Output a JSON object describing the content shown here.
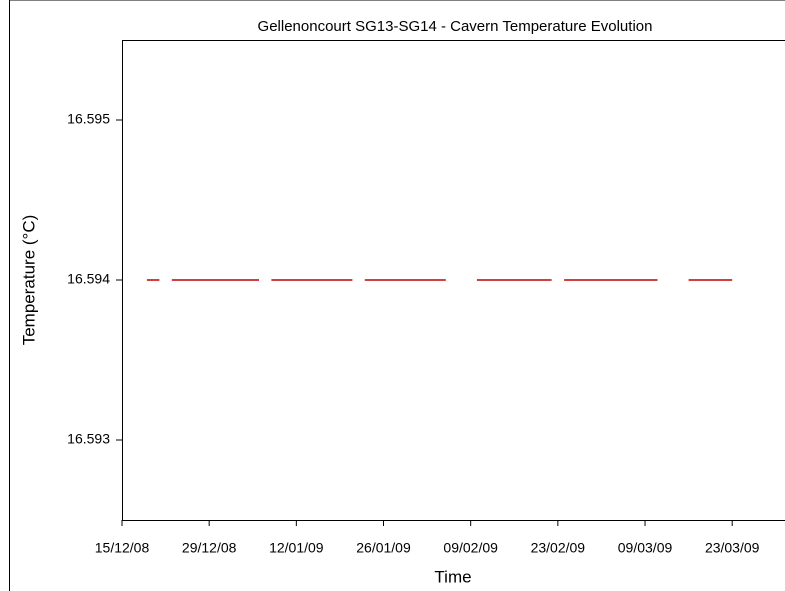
{
  "chart_data": {
    "type": "line",
    "title": "Gellenoncourt SG13-SG14 - Cavern Temperature Evolution",
    "x_label": "Time",
    "y_label": "Temperature (°C)",
    "x": [
      "2008-12-19",
      "2008-12-21",
      "2008-12-22",
      "2008-12-23",
      "2009-01-06",
      "2009-01-07",
      "2009-01-08",
      "2009-01-21",
      "2009-01-22",
      "2009-01-23",
      "2009-02-05",
      "2009-02-07",
      "2009-02-10",
      "2009-02-22",
      "2009-02-23",
      "2009-02-24",
      "2009-03-11",
      "2009-03-13",
      "2009-03-16",
      "2009-03-23"
    ],
    "series": [
      {
        "color": "#c00000",
        "values": [
          16.594,
          16.594,
          null,
          16.594,
          16.594,
          null,
          16.594,
          16.594,
          null,
          16.594,
          16.594,
          null,
          16.594,
          16.594,
          null,
          16.594,
          16.594,
          null,
          16.594,
          16.594
        ]
      }
    ],
    "xlim": [
      "2008-12-15",
      "2009-03-31"
    ],
    "xticks": [
      {
        "value": "2008-12-15",
        "label": "15/12/08"
      },
      {
        "value": "2008-12-29",
        "label": "29/12/08"
      },
      {
        "value": "2009-01-12",
        "label": "12/01/09"
      },
      {
        "value": "2009-01-26",
        "label": "26/01/09"
      },
      {
        "value": "2009-02-09",
        "label": "09/02/09"
      },
      {
        "value": "2009-02-23",
        "label": "23/02/09"
      },
      {
        "value": "2009-03-09",
        "label": "09/03/09"
      },
      {
        "value": "2009-03-23",
        "label": "23/03/09"
      }
    ],
    "ylim": [
      16.5925,
      16.5955
    ],
    "yticks": [
      16.593,
      16.594,
      16.595
    ]
  }
}
